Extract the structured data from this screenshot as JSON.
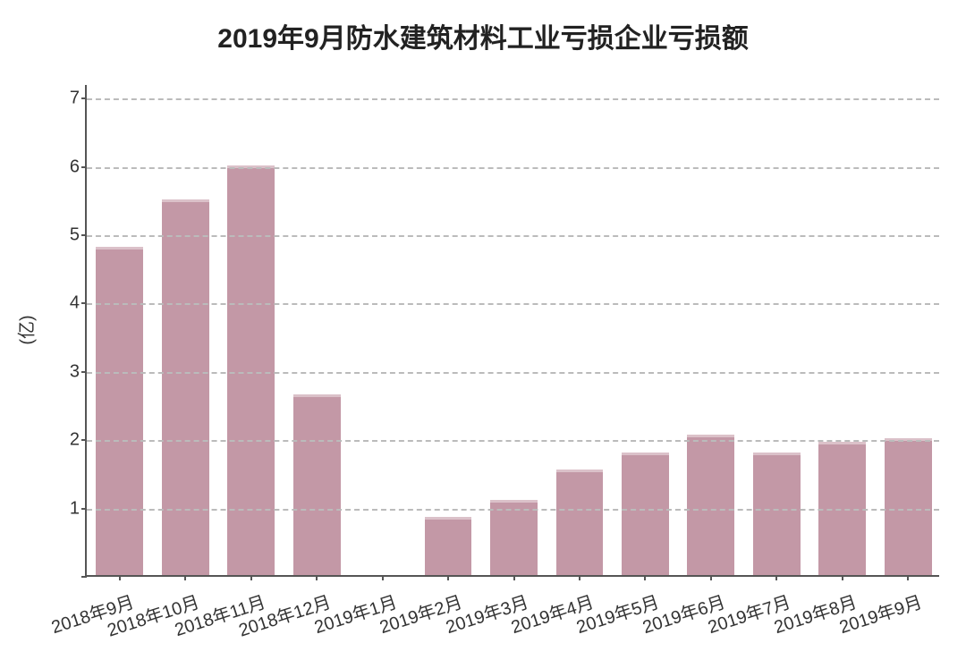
{
  "chart": {
    "type": "bar",
    "title": "2019年9月防水建筑材料工业亏损企业亏损额",
    "title_fontsize": 30,
    "title_fontweight": "bold",
    "title_color": "#222222",
    "ylabel": "(亿)",
    "ylabel_fontsize": 20,
    "background_color": "#ffffff",
    "grid_color": "#bbbbbb",
    "axis_color": "#555555",
    "bar_color": "#c398a6",
    "bar_cap_color": "rgba(255,255,255,0.4)",
    "bar_width_ratio": 0.72,
    "categories": [
      "2018年9月",
      "2018年10月",
      "2018年11月",
      "2018年12月",
      "2019年1月",
      "2019年2月",
      "2019年3月",
      "2019年4月",
      "2019年5月",
      "2019年6月",
      "2019年7月",
      "2019年8月",
      "2019年9月"
    ],
    "values": [
      4.8,
      5.5,
      6.0,
      2.65,
      0,
      0.85,
      1.1,
      1.55,
      1.8,
      2.05,
      1.8,
      1.95,
      2.0
    ],
    "ylim": [
      0,
      7.2
    ],
    "yticks": [
      0,
      1,
      2,
      3,
      4,
      5,
      6,
      7
    ],
    "ytick_labels_visible": {
      "0": false,
      "1": "1",
      "2": "2",
      "3": "3",
      "4": "4",
      "5": "5",
      "6": "6",
      "7": "7"
    },
    "tick_fontsize": 20,
    "xtick_rotation_deg": -18
  }
}
